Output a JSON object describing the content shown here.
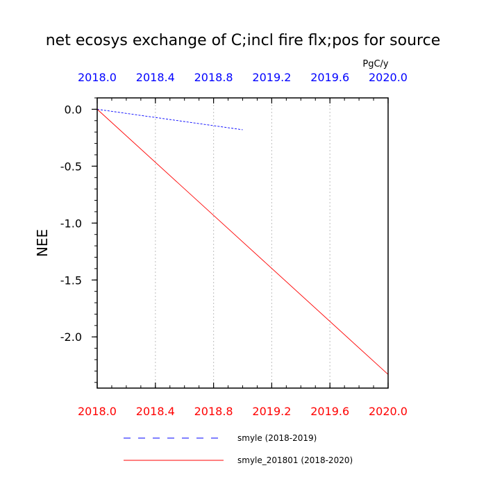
{
  "chart_data": {
    "type": "line",
    "title": "net ecosys exchange of C;incl fire flx;pos for source",
    "units": "PgC/y",
    "ylabel": "NEE",
    "xlabel": "",
    "xlim": [
      2018.0,
      2020.0
    ],
    "ylim": [
      -2.45,
      0.1
    ],
    "x_ticks": [
      "2018.0",
      "2018.4",
      "2018.8",
      "2019.2",
      "2019.6",
      "2020.0"
    ],
    "x_tick_values": [
      2018.0,
      2018.4,
      2018.8,
      2019.2,
      2019.6,
      2020.0
    ],
    "top_axis_color": "#0000ff",
    "bottom_axis_color": "#ff0000",
    "y_ticks": [
      "0.0",
      "-0.5",
      "-1.0",
      "-1.5",
      "-2.0"
    ],
    "y_tick_values": [
      0.0,
      -0.5,
      -1.0,
      -1.5,
      -2.0
    ],
    "grid": "vertical dotted",
    "legend_position": "bottom",
    "series": [
      {
        "name": "smyle (2018-2019)",
        "color": "#0000ff",
        "style": "dashed",
        "x": [
          2018.0,
          2019.0
        ],
        "y": [
          0.0,
          -0.18
        ]
      },
      {
        "name": "smyle_201801 (2018-2020)",
        "color": "#ff0000",
        "style": "solid",
        "x": [
          2018.0,
          2020.0
        ],
        "y": [
          0.0,
          -2.33
        ]
      }
    ]
  }
}
